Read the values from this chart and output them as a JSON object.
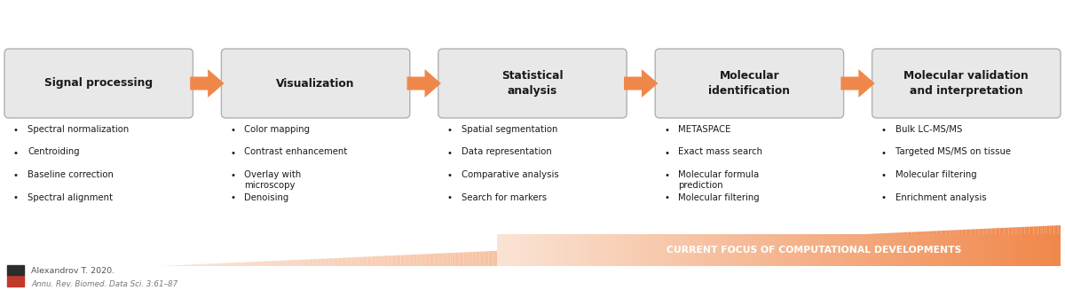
{
  "bg_color": "#ffffff",
  "box_color": "#e8e8e8",
  "box_edge_color": "#b0b0b0",
  "arrow_color": "#f0874a",
  "text_color": "#1a1a1a",
  "bullet_color": "#1a1a1a",
  "steps": [
    {
      "title": "Signal processing",
      "bullets": [
        "Spectral normalization",
        "Centroiding",
        "Baseline correction",
        "Spectral alignment"
      ]
    },
    {
      "title": "Visualization",
      "bullets": [
        "Color mapping",
        "Contrast enhancement",
        "Overlay with\nmicroscopy",
        "Denoising"
      ]
    },
    {
      "title": "Statistical\nanalysis",
      "bullets": [
        "Spatial segmentation",
        "Data representation",
        "Comparative analysis",
        "Search for markers"
      ]
    },
    {
      "title": "Molecular\nidentification",
      "bullets": [
        "METASPACE",
        "Exact mass search",
        "Molecular formula\nprediction",
        "Molecular filtering"
      ]
    },
    {
      "title": "Molecular validation\nand interpretation",
      "bullets": [
        "Bulk LC-MS/MS",
        "Targeted MS/MS on tissue",
        "Molecular filtering",
        "Enrichment analysis"
      ]
    }
  ],
  "triangle_color_left": "#fae3d4",
  "triangle_color_right": "#f0874a",
  "banner_text": "CURRENT FOCUS OF COMPUTATIONAL DEVELOPMENTS",
  "banner_text_color": "#ffffff",
  "citation_line1": "Alexandrov T. 2020.",
  "citation_line2": "Annu. Rev. Biomed. Data Sci. 3:61–87"
}
